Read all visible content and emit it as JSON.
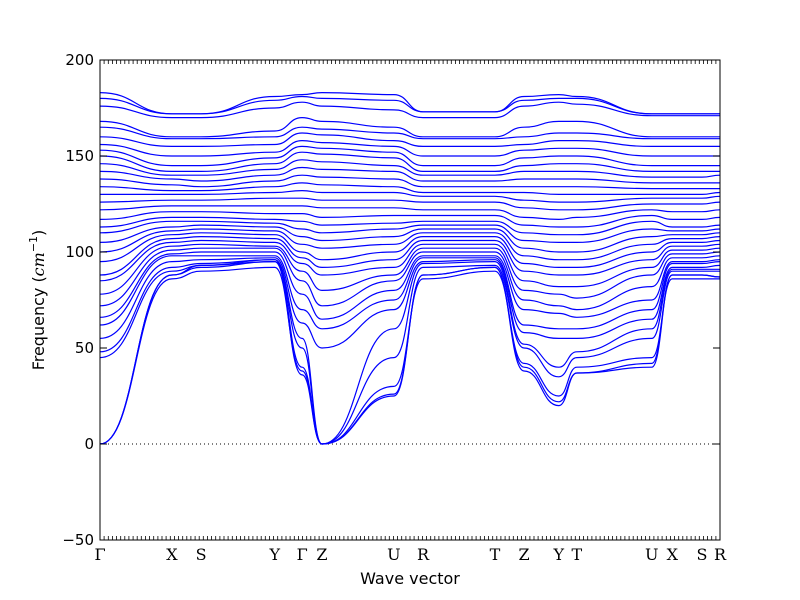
{
  "chart_data": {
    "type": "line",
    "xlabel": "Wave vector",
    "ylabel": "Frequency (cm⁻¹)",
    "ylabel_parts": {
      "base": "Frequency (",
      "unit": "cm",
      "exp": "−1",
      "close": ")"
    },
    "ylim": [
      -50,
      200
    ],
    "yticks": [
      -50,
      0,
      50,
      100,
      150,
      200
    ],
    "ytick_labels": [
      "−50",
      "0",
      "50",
      "100",
      "150",
      "200"
    ],
    "xlim": [
      0,
      1
    ],
    "kpoints": [
      {
        "label": "Γ",
        "x": 0.0
      },
      {
        "label": "X",
        "x": 0.116
      },
      {
        "label": "S",
        "x": 0.163
      },
      {
        "label": "Y",
        "x": 0.282
      },
      {
        "label": "Γ",
        "x": 0.326
      },
      {
        "label": "Z",
        "x": 0.358
      },
      {
        "label": "U",
        "x": 0.474
      },
      {
        "label": "R",
        "x": 0.521
      },
      {
        "label": "T",
        "x": 0.637
      },
      {
        "label": "Z",
        "x": 0.684
      },
      {
        "label": "Y",
        "x": 0.74
      },
      {
        "label": "T",
        "x": 0.769
      },
      {
        "label": "U",
        "x": 0.89
      },
      {
        "label": "X",
        "x": 0.923
      },
      {
        "label": "S",
        "x": 0.971
      },
      {
        "label": "R",
        "x": 1.0
      }
    ],
    "zero_line": {
      "y": 0,
      "style": "dotted"
    },
    "line_color": "#0000ff",
    "grid": false,
    "legend": "none",
    "series": [
      {
        "values": [
          0,
          88,
          92,
          95,
          36,
          0,
          25,
          88,
          92,
          40,
          22,
          37,
          40,
          88,
          88,
          87
        ]
      },
      {
        "values": [
          0,
          88,
          93,
          96,
          40,
          0,
          26,
          88,
          92,
          38,
          20,
          37,
          42,
          88,
          88,
          87
        ]
      },
      {
        "values": [
          0,
          86,
          90,
          92,
          38,
          0,
          30,
          86,
          90,
          42,
          25,
          40,
          45,
          86,
          86,
          86
        ]
      },
      {
        "values": [
          45,
          90,
          93,
          95,
          50,
          0,
          45,
          92,
          93,
          50,
          35,
          45,
          55,
          90,
          90,
          90
        ]
      },
      {
        "values": [
          48,
          92,
          94,
          96,
          55,
          0,
          60,
          94,
          95,
          52,
          40,
          48,
          60,
          91,
          91,
          91
        ]
      },
      {
        "values": [
          55,
          95,
          96,
          97,
          63,
          50,
          70,
          95,
          96,
          58,
          55,
          55,
          65,
          92,
          92,
          93
        ]
      },
      {
        "values": [
          62,
          98,
          98,
          98,
          70,
          60,
          75,
          97,
          97,
          62,
          60,
          60,
          70,
          94,
          94,
          95
        ]
      },
      {
        "values": [
          66,
          99,
          100,
          100,
          78,
          65,
          80,
          98,
          98,
          70,
          68,
          66,
          75,
          95,
          95,
          96
        ]
      },
      {
        "values": [
          72,
          101,
          102,
          102,
          85,
          72,
          85,
          100,
          100,
          75,
          72,
          70,
          82,
          97,
          97,
          98
        ]
      },
      {
        "values": [
          78,
          103,
          104,
          103,
          90,
          80,
          88,
          102,
          102,
          80,
          78,
          76,
          88,
          99,
          99,
          100
        ]
      },
      {
        "values": [
          85,
          105,
          106,
          105,
          94,
          88,
          92,
          104,
          104,
          85,
          82,
          82,
          92,
          101,
          101,
          102
        ]
      },
      {
        "values": [
          88,
          107,
          108,
          107,
          97,
          92,
          96,
          106,
          106,
          90,
          88,
          88,
          96,
          103,
          103,
          104
        ]
      },
      {
        "values": [
          95,
          109,
          110,
          109,
          100,
          96,
          100,
          108,
          108,
          94,
          92,
          92,
          100,
          105,
          105,
          106
        ]
      },
      {
        "values": [
          100,
          111,
          112,
          111,
          104,
          102,
          104,
          110,
          110,
          98,
          96,
          96,
          104,
          107,
          107,
          108
        ]
      },
      {
        "values": [
          105,
          113,
          114,
          113,
          108,
          106,
          108,
          112,
          112,
          102,
          100,
          100,
          108,
          109,
          109,
          110
        ]
      },
      {
        "values": [
          110,
          116,
          116,
          115,
          112,
          110,
          112,
          114,
          114,
          106,
          105,
          105,
          112,
          111,
          111,
          112
        ]
      },
      {
        "values": [
          113,
          118,
          118,
          117,
          116,
          114,
          115,
          116,
          116,
          110,
          109,
          109,
          116,
          113,
          113,
          114
        ]
      },
      {
        "values": [
          117,
          121,
          121,
          120,
          120,
          118,
          119,
          119,
          119,
          114,
          113,
          113,
          119,
          117,
          117,
          118
        ]
      },
      {
        "values": [
          122,
          124,
          124,
          124,
          124,
          123,
          123,
          122,
          122,
          118,
          117,
          118,
          122,
          121,
          121,
          122
        ]
      },
      {
        "values": [
          126,
          127,
          127,
          128,
          128,
          127,
          127,
          126,
          126,
          123,
          122,
          122,
          125,
          125,
          125,
          126
        ]
      },
      {
        "values": [
          130,
          130,
          130,
          131,
          132,
          131,
          131,
          129,
          129,
          127,
          126,
          126,
          128,
          128,
          128,
          129
        ]
      },
      {
        "values": [
          134,
          132,
          132,
          134,
          136,
          135,
          134,
          131,
          131,
          131,
          130,
          130,
          130,
          130,
          130,
          131
        ]
      },
      {
        "values": [
          138,
          135,
          134,
          137,
          140,
          139,
          138,
          134,
          134,
          134,
          134,
          134,
          133,
          133,
          133,
          133
        ]
      },
      {
        "values": [
          142,
          138,
          137,
          140,
          144,
          143,
          142,
          137,
          137,
          138,
          138,
          138,
          136,
          136,
          136,
          136
        ]
      },
      {
        "values": [
          146,
          140,
          140,
          143,
          148,
          147,
          145,
          140,
          140,
          142,
          142,
          142,
          139,
          139,
          139,
          140
        ]
      },
      {
        "values": [
          150,
          142,
          142,
          146,
          152,
          151,
          149,
          142,
          142,
          145,
          146,
          146,
          142,
          142,
          142,
          142
        ]
      },
      {
        "values": [
          153,
          145,
          145,
          149,
          155,
          154,
          152,
          145,
          145,
          149,
          150,
          150,
          145,
          145,
          145,
          145
        ]
      },
      {
        "values": [
          156,
          150,
          150,
          152,
          158,
          157,
          155,
          150,
          150,
          153,
          154,
          154,
          150,
          150,
          150,
          150
        ]
      },
      {
        "values": [
          160,
          155,
          155,
          156,
          162,
          161,
          158,
          155,
          155,
          156,
          158,
          158,
          155,
          155,
          155,
          155
        ]
      },
      {
        "values": [
          165,
          159,
          159,
          160,
          165,
          164,
          162,
          159,
          159,
          160,
          162,
          162,
          159,
          159,
          159,
          159
        ]
      },
      {
        "values": [
          168,
          160,
          160,
          163,
          170,
          168,
          165,
          160,
          160,
          165,
          168,
          168,
          160,
          160,
          160,
          160
        ]
      },
      {
        "values": [
          176,
          170,
          170,
          175,
          178,
          176,
          174,
          170,
          170,
          176,
          178,
          177,
          171,
          171,
          171,
          171
        ]
      },
      {
        "values": [
          180,
          172,
          172,
          179,
          181,
          180,
          179,
          173,
          173,
          179,
          180,
          180,
          172,
          172,
          172,
          172
        ]
      },
      {
        "values": [
          183,
          172,
          172,
          181,
          182,
          183,
          182,
          173,
          173,
          181,
          182,
          181,
          172,
          172,
          172,
          172
        ]
      }
    ]
  }
}
